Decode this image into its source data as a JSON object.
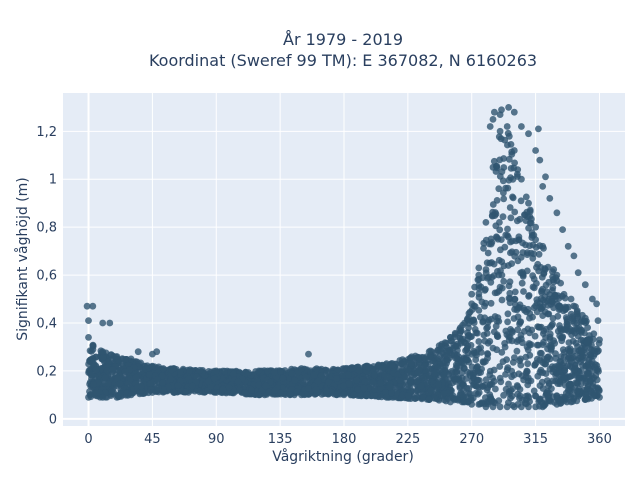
{
  "chart_data": {
    "type": "scatter",
    "title_lines": [
      "År 1979 - 2019",
      "Koordinat (Sweref 99 TM): E 367082, N 6160263"
    ],
    "xlabel": "Vågriktning (grader)",
    "ylabel": "Signifikant våghöjd (m)",
    "xlim": [
      -18,
      378
    ],
    "ylim": [
      -0.03,
      1.36
    ],
    "x_ticks": [
      0,
      45,
      90,
      135,
      180,
      225,
      270,
      315,
      360
    ],
    "x_tick_labels": [
      "0",
      "45",
      "90",
      "135",
      "180",
      "225",
      "270",
      "315",
      "360"
    ],
    "y_ticks": [
      0,
      0.2,
      0.4,
      0.6,
      0.8,
      1.0,
      1.2
    ],
    "y_tick_labels": [
      "0",
      "0,2",
      "0,4",
      "0,6",
      "0,8",
      "1",
      "1,2"
    ],
    "grid": true,
    "plot_background": "#e5ecf6",
    "marker_color": "#2f5570",
    "envelope": {
      "x": [
        0,
        10,
        20,
        30,
        45,
        60,
        90,
        120,
        150,
        180,
        210,
        240,
        255,
        265,
        270,
        275,
        280,
        285,
        290,
        295,
        300,
        305,
        310,
        315,
        320,
        330,
        340,
        350,
        360
      ],
      "y_low": [
        0.09,
        0.09,
        0.09,
        0.1,
        0.11,
        0.11,
        0.11,
        0.1,
        0.1,
        0.1,
        0.09,
        0.08,
        0.07,
        0.07,
        0.06,
        0.06,
        0.05,
        0.05,
        0.05,
        0.05,
        0.05,
        0.05,
        0.05,
        0.05,
        0.05,
        0.06,
        0.07,
        0.08,
        0.09
      ],
      "y_high": [
        0.34,
        0.28,
        0.26,
        0.25,
        0.22,
        0.21,
        0.2,
        0.2,
        0.21,
        0.21,
        0.23,
        0.28,
        0.34,
        0.4,
        0.48,
        0.6,
        0.82,
        1.05,
        1.2,
        1.22,
        1.12,
        1.0,
        0.9,
        0.8,
        0.72,
        0.6,
        0.5,
        0.42,
        0.33
      ]
    },
    "outliers": [
      {
        "x": -1,
        "y": 0.47
      },
      {
        "x": 3,
        "y": 0.47
      },
      {
        "x": 0,
        "y": 0.41
      },
      {
        "x": 10,
        "y": 0.4
      },
      {
        "x": 15,
        "y": 0.4
      },
      {
        "x": 35,
        "y": 0.28
      },
      {
        "x": 45,
        "y": 0.27
      },
      {
        "x": 48,
        "y": 0.28
      },
      {
        "x": 155,
        "y": 0.27
      },
      {
        "x": 255,
        "y": 0.34
      },
      {
        "x": 262,
        "y": 0.38
      },
      {
        "x": 268,
        "y": 0.44
      },
      {
        "x": 270,
        "y": 0.52
      },
      {
        "x": 272,
        "y": 0.55
      },
      {
        "x": 275,
        "y": 0.63
      },
      {
        "x": 283,
        "y": 1.22
      },
      {
        "x": 285,
        "y": 1.25
      },
      {
        "x": 286,
        "y": 1.28
      },
      {
        "x": 290,
        "y": 1.27
      },
      {
        "x": 291,
        "y": 1.29
      },
      {
        "x": 296,
        "y": 1.3
      },
      {
        "x": 300,
        "y": 1.28
      },
      {
        "x": 305,
        "y": 1.22
      },
      {
        "x": 310,
        "y": 1.19
      },
      {
        "x": 315,
        "y": 1.12
      },
      {
        "x": 317,
        "y": 1.21
      },
      {
        "x": 318,
        "y": 1.08
      },
      {
        "x": 322,
        "y": 1.01
      },
      {
        "x": 320,
        "y": 0.97
      },
      {
        "x": 325,
        "y": 0.92
      },
      {
        "x": 330,
        "y": 0.86
      },
      {
        "x": 334,
        "y": 0.79
      },
      {
        "x": 338,
        "y": 0.72
      },
      {
        "x": 342,
        "y": 0.68
      },
      {
        "x": 345,
        "y": 0.61
      },
      {
        "x": 350,
        "y": 0.56
      },
      {
        "x": 355,
        "y": 0.5
      },
      {
        "x": 358,
        "y": 0.48
      },
      {
        "x": 359,
        "y": 0.41
      }
    ]
  }
}
